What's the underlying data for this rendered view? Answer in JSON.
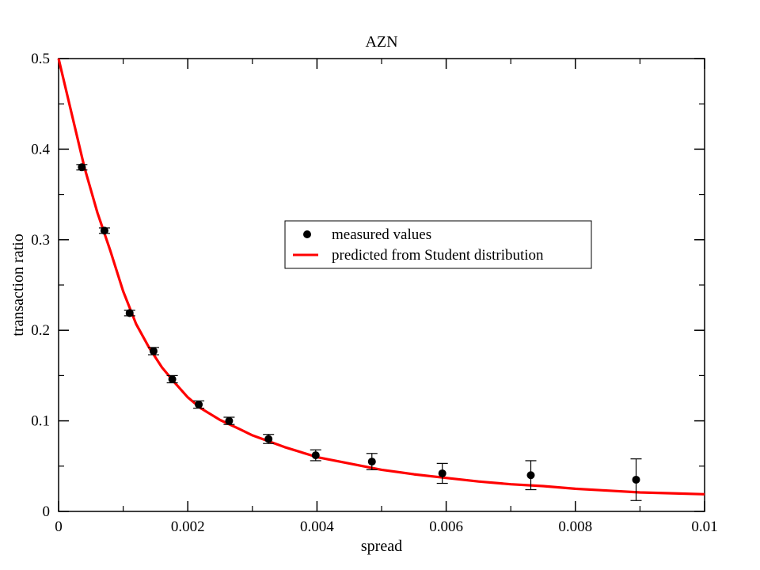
{
  "chart_data": {
    "type": "scatter",
    "title": "AZN",
    "xlabel": "spread",
    "ylabel": "transaction ratio",
    "xlim": [
      0,
      0.01
    ],
    "ylim": [
      0,
      0.5
    ],
    "grid": false,
    "legend_position": "center",
    "x_ticks": [
      {
        "value": 0,
        "label": "0"
      },
      {
        "value": 0.002,
        "label": "0.002"
      },
      {
        "value": 0.004,
        "label": "0.004"
      },
      {
        "value": 0.006,
        "label": "0.006"
      },
      {
        "value": 0.008,
        "label": "0.008"
      },
      {
        "value": 0.01,
        "label": "0.01"
      }
    ],
    "y_ticks": [
      {
        "value": 0,
        "label": "0"
      },
      {
        "value": 0.1,
        "label": "0.1"
      },
      {
        "value": 0.2,
        "label": "0.2"
      },
      {
        "value": 0.3,
        "label": "0.3"
      },
      {
        "value": 0.4,
        "label": "0.4"
      },
      {
        "value": 0.5,
        "label": "0.5"
      }
    ],
    "series": [
      {
        "name": "measured values",
        "type": "scatter",
        "color": "#000000",
        "points": [
          {
            "x": 0.00036,
            "y": 0.38,
            "err": 0.003
          },
          {
            "x": 0.00071,
            "y": 0.31,
            "err": 0.003
          },
          {
            "x": 0.0011,
            "y": 0.219,
            "err": 0.003
          },
          {
            "x": 0.00147,
            "y": 0.177,
            "err": 0.004
          },
          {
            "x": 0.00176,
            "y": 0.146,
            "err": 0.004
          },
          {
            "x": 0.00217,
            "y": 0.118,
            "err": 0.004
          },
          {
            "x": 0.00264,
            "y": 0.1,
            "err": 0.004
          },
          {
            "x": 0.00325,
            "y": 0.08,
            "err": 0.005
          },
          {
            "x": 0.00398,
            "y": 0.062,
            "err": 0.006
          },
          {
            "x": 0.00485,
            "y": 0.055,
            "err": 0.009
          },
          {
            "x": 0.00594,
            "y": 0.042,
            "err": 0.011
          },
          {
            "x": 0.00731,
            "y": 0.04,
            "err": 0.016
          },
          {
            "x": 0.00894,
            "y": 0.035,
            "err": 0.023
          }
        ]
      },
      {
        "name": "predicted from Student distribution",
        "type": "line",
        "color": "#ff0000",
        "points": [
          {
            "x": 0.0,
            "y": 0.5
          },
          {
            "x": 0.0002,
            "y": 0.44
          },
          {
            "x": 0.0004,
            "y": 0.38
          },
          {
            "x": 0.0006,
            "y": 0.33
          },
          {
            "x": 0.0008,
            "y": 0.288
          },
          {
            "x": 0.001,
            "y": 0.243
          },
          {
            "x": 0.0012,
            "y": 0.207
          },
          {
            "x": 0.0014,
            "y": 0.181
          },
          {
            "x": 0.0016,
            "y": 0.159
          },
          {
            "x": 0.0018,
            "y": 0.142
          },
          {
            "x": 0.002,
            "y": 0.126
          },
          {
            "x": 0.0022,
            "y": 0.114
          },
          {
            "x": 0.0025,
            "y": 0.101
          },
          {
            "x": 0.0028,
            "y": 0.091
          },
          {
            "x": 0.003,
            "y": 0.084
          },
          {
            "x": 0.0035,
            "y": 0.071
          },
          {
            "x": 0.004,
            "y": 0.06
          },
          {
            "x": 0.0045,
            "y": 0.053
          },
          {
            "x": 0.005,
            "y": 0.046
          },
          {
            "x": 0.0055,
            "y": 0.041
          },
          {
            "x": 0.006,
            "y": 0.037
          },
          {
            "x": 0.0065,
            "y": 0.033
          },
          {
            "x": 0.007,
            "y": 0.03
          },
          {
            "x": 0.0075,
            "y": 0.028
          },
          {
            "x": 0.008,
            "y": 0.025
          },
          {
            "x": 0.0085,
            "y": 0.023
          },
          {
            "x": 0.009,
            "y": 0.021
          },
          {
            "x": 0.0095,
            "y": 0.02
          },
          {
            "x": 0.01,
            "y": 0.019
          }
        ]
      }
    ]
  }
}
